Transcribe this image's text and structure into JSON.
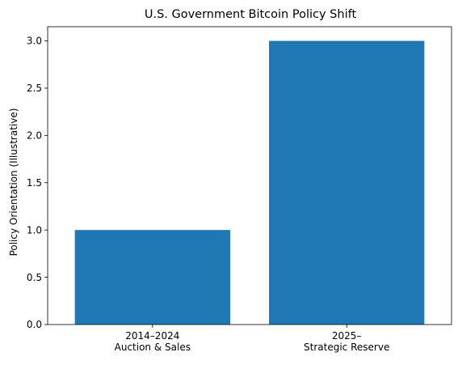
{
  "chart_data": {
    "type": "bar",
    "title": "U.S. Government Bitcoin Policy Shift",
    "xlabel": "",
    "ylabel": "Policy Orientation (Illustrative)",
    "categories": [
      [
        "2014–2024",
        "Auction & Sales"
      ],
      [
        "2025–",
        "Strategic Reserve"
      ]
    ],
    "values": [
      1.0,
      3.0
    ],
    "ylim": [
      0,
      3.15
    ],
    "yticks": [
      0.0,
      0.5,
      1.0,
      1.5,
      2.0,
      2.5,
      3.0
    ],
    "ytick_labels": [
      "0.0",
      "0.5",
      "1.0",
      "1.5",
      "2.0",
      "2.5",
      "3.0"
    ],
    "bar_color": "#1f77b4",
    "grid": false,
    "legend": "none"
  }
}
